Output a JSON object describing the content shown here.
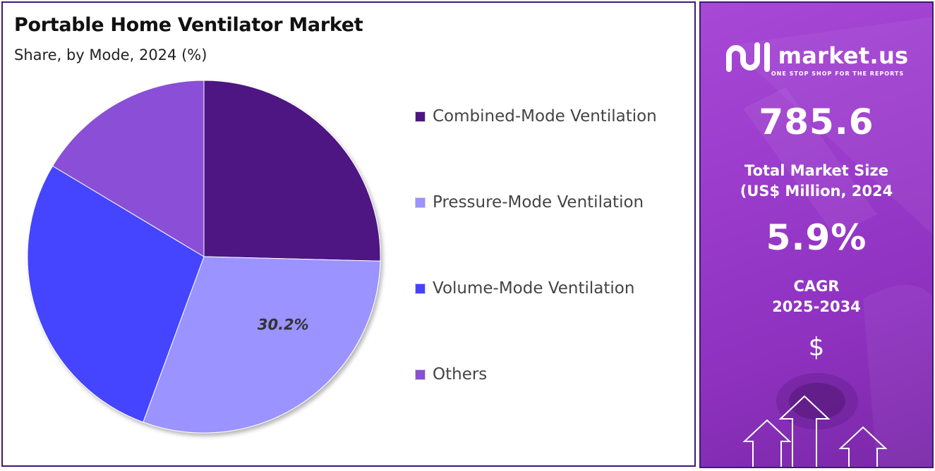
{
  "chart_data": {
    "type": "pie",
    "title": "Portable Home Ventilator Market",
    "subtitle": "Share, by Mode, 2024 (%)",
    "categories": [
      "Combined-Mode Ventilation",
      "Pressure-Mode Ventilation",
      "Volume-Mode Ventilation",
      "Others"
    ],
    "values": [
      25.4,
      30.2,
      28.0,
      16.4
    ],
    "colors": [
      "#4e1582",
      "#9b93ff",
      "#4444ff",
      "#8a4fd6"
    ],
    "data_labels": [
      "",
      "30.2%",
      "",
      ""
    ],
    "start_angle_deg": -90,
    "direction": "clockwise",
    "legend_position": "right"
  },
  "side_panel": {
    "brand_name": "market.us",
    "brand_tagline": "ONE STOP SHOP FOR THE REPORTS",
    "market_size_value": "785.6",
    "market_size_label_1": "Total Market Size",
    "market_size_label_2": "(US$ Million, 2024",
    "cagr_value": "5.9%",
    "cagr_label_1": "CAGR",
    "cagr_label_2": "2025-2034",
    "currency_symbol": "$"
  },
  "icons": {
    "brand_logo": "market-us-logo-icon",
    "arrows": "up-arrows-icon"
  }
}
